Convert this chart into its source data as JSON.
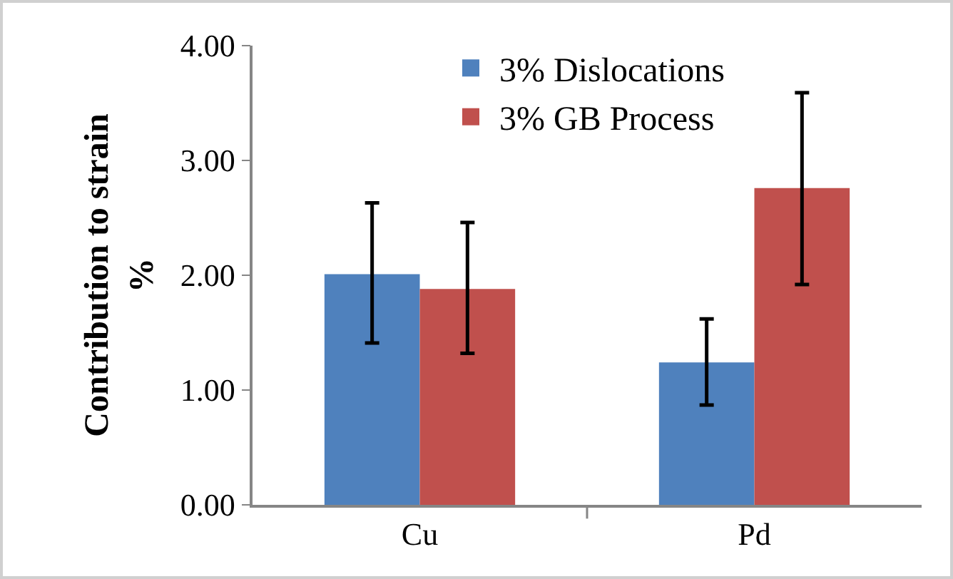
{
  "chart_data": {
    "type": "bar",
    "ylabel": "Contribution to strain %",
    "categories": [
      "Cu",
      "Pd"
    ],
    "series": [
      {
        "name": "3% Dislocations",
        "color": "#4f81bd",
        "values": [
          2.01,
          1.24
        ],
        "errors": [
          [
            1.41,
            2.63
          ],
          [
            0.87,
            1.62
          ]
        ]
      },
      {
        "name": "3% GB Process",
        "color": "#c0504d",
        "values": [
          1.88,
          2.76
        ],
        "errors": [
          [
            1.32,
            2.46
          ],
          [
            1.92,
            3.59
          ]
        ]
      }
    ],
    "ylim": [
      0,
      4
    ],
    "yticks": [
      {
        "value": 0,
        "label": "0.00"
      },
      {
        "value": 1,
        "label": "1.00"
      },
      {
        "value": 2,
        "label": "2.00"
      },
      {
        "value": 3,
        "label": "3.00"
      },
      {
        "value": 4,
        "label": "4.00"
      }
    ],
    "grid": false,
    "legend": "top"
  }
}
